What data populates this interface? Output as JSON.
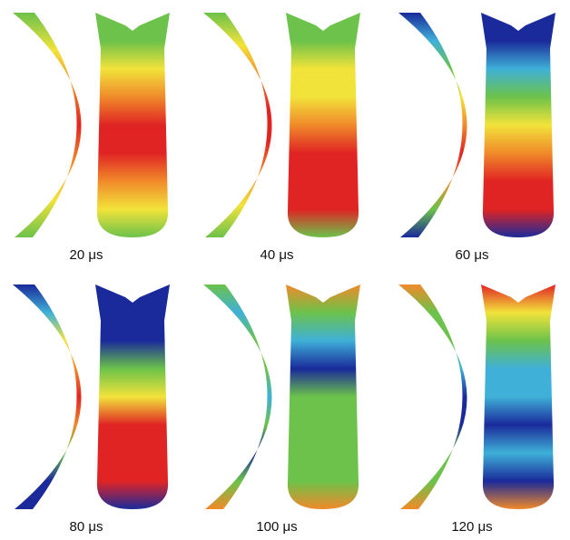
{
  "panels": [
    {
      "label": "20 μs"
    },
    {
      "label": "40 μs"
    },
    {
      "label": "60 μs"
    },
    {
      "label": "80 μs"
    },
    {
      "label": "100 μs"
    },
    {
      "label": "120 μs"
    }
  ]
}
